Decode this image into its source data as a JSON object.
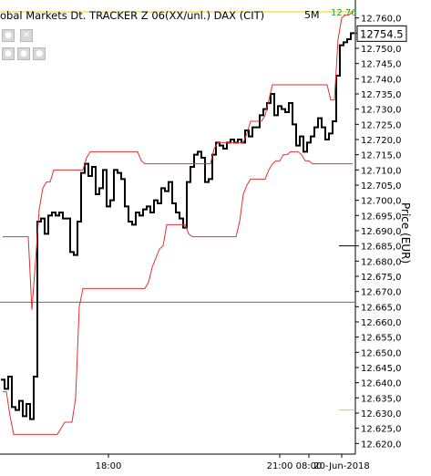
{
  "header": {
    "title": "obal Markets Dt. TRACKER Z 06(XX/unl.) DAX (CIT)",
    "timeframe": "5M",
    "high_badge": "12.76",
    "last_price": "12754.5"
  },
  "controls": [
    {
      "icon": "circle-icon"
    },
    {
      "icon": "close-icon"
    },
    {
      "icon": "circle-icon"
    },
    {
      "icon": "circle-icon"
    },
    {
      "icon": "circle-icon"
    }
  ],
  "colors": {
    "price": "#000000",
    "bands": "#e23030",
    "green_line": "#2e9a2e",
    "yellow_line": "#f0d000",
    "badge_text": "#2e9a2e"
  },
  "chart_data": {
    "type": "line",
    "title": "obal Markets Dt. TRACKER Z 06(XX/unl.) DAX (CIT)",
    "ylabel": "Price (EUR)",
    "ylim": [
      12616.5,
      12763.5
    ],
    "yticks": [
      "12.620,0",
      "12.625,0",
      "12.630,0",
      "12.635,0",
      "12.640,0",
      "12.645,0",
      "12.650,0",
      "12.655,0",
      "12.660,0",
      "12.665,0",
      "12.670,0",
      "12.675,0",
      "12.680,0",
      "12.685,0",
      "12.690,0",
      "12.695,0",
      "12.700,0",
      "12.705,0",
      "12.710,0",
      "12.715,0",
      "12.720,0",
      "12.725,0",
      "12.730,0",
      "12.735,0",
      "12.740,0",
      "12.745,0",
      "12.750,0",
      "12.755,0",
      "12.760,0"
    ],
    "xticks": [
      {
        "label": "18:00",
        "bar": 29
      },
      {
        "label": "21:00",
        "bar": 76
      },
      {
        "label": "08:00",
        "bar": 84
      },
      {
        "label": "20-Jun-2018",
        "bar": 93
      }
    ],
    "hlines": [
      {
        "value": 12666.5,
        "color": "green"
      },
      {
        "value": 12762.0,
        "color": "yellow"
      },
      {
        "value": 12631.0,
        "color": "yellow",
        "scope": "right-edge"
      }
    ],
    "series": [
      {
        "role": "price",
        "step": true,
        "values": [
          12641,
          12638,
          12642,
          12632,
          12631,
          12634,
          12629,
          12633,
          12628,
          12642,
          12693,
          12694,
          12689,
          12695,
          12696,
          12695,
          12696,
          12694,
          12694,
          12683,
          12682,
          12693,
          12709,
          12712,
          12708,
          12711,
          12702,
          12704,
          12710,
          12698,
          12700,
          12710,
          12709,
          12707,
          12698,
          12693,
          12692,
          12696,
          12695,
          12697,
          12698,
          12696,
          12700,
          12699,
          12704,
          12703,
          12706,
          12699,
          12696,
          12694,
          12691,
          12706,
          12711,
          12715,
          12716,
          12714,
          12706,
          12707,
          12715,
          12719,
          12718,
          12717,
          12719,
          12720,
          12719,
          12720,
          12719,
          12723,
          12721,
          12724,
          12724,
          12728,
          12730,
          12732,
          12735,
          12728,
          12731,
          12730,
          12729,
          12732,
          12725,
          12718,
          12721,
          12716,
          12719,
          12721,
          12724,
          12727,
          12724,
          12720,
          12722,
          12726,
          12741,
          12751,
          12752,
          12753,
          12755
        ]
      },
      {
        "role": "upper-band",
        "values": [
          12688,
          12688,
          12688,
          12688,
          12688,
          12688,
          12688,
          12688,
          12664,
          12680,
          12697,
          12704,
          12706,
          12706,
          12710,
          12710,
          12710,
          12710,
          12710,
          12710,
          12710,
          12710,
          12710,
          12714,
          12716,
          12716,
          12716,
          12716,
          12716,
          12716,
          12716,
          12716,
          12716,
          12716,
          12716,
          12716,
          12716,
          12716,
          12713,
          12712,
          12712,
          12712,
          12712,
          12712,
          12712,
          12712,
          12712,
          12712,
          12712,
          12712,
          12712,
          12712,
          12712,
          12712,
          12712,
          12712,
          12712,
          12712,
          12717,
          12719,
          12719,
          12719,
          12719,
          12719,
          12719,
          12719,
          12719,
          12722,
          12726,
          12726,
          12726,
          12726,
          12728,
          12733,
          12738,
          12738,
          12738,
          12738,
          12738,
          12738,
          12738,
          12738,
          12738,
          12738,
          12738,
          12738,
          12738,
          12738,
          12738,
          12738,
          12733,
          12733,
          12753,
          12760,
          12761,
          12761,
          12762
        ]
      },
      {
        "role": "lower-band",
        "values": [
          12637,
          12637,
          12629,
          12623,
          12623,
          12623,
          12623,
          12623,
          12623,
          12623,
          12623,
          12623,
          12623,
          12623,
          12623,
          12623,
          12625,
          12627,
          12627,
          12627,
          12635,
          12665,
          12671,
          12671,
          12671,
          12671,
          12671,
          12671,
          12671,
          12671,
          12671,
          12671,
          12671,
          12671,
          12671,
          12671,
          12671,
          12671,
          12671,
          12671,
          12673,
          12678,
          12681,
          12684,
          12685,
          12692,
          12692,
          12692,
          12692,
          12692,
          12692,
          12689,
          12688,
          12688,
          12688,
          12688,
          12688,
          12688,
          12688,
          12688,
          12688,
          12688,
          12688,
          12688,
          12688,
          12693,
          12702,
          12705,
          12707,
          12707,
          12707,
          12707,
          12707,
          12710,
          12712,
          12713,
          12713,
          12715,
          12715,
          12716,
          12716,
          12716,
          12715,
          12713,
          12713,
          12712,
          12712,
          12712,
          12712,
          12712,
          12712,
          12712,
          12712,
          12712,
          12712,
          12712,
          12712
        ]
      }
    ]
  }
}
